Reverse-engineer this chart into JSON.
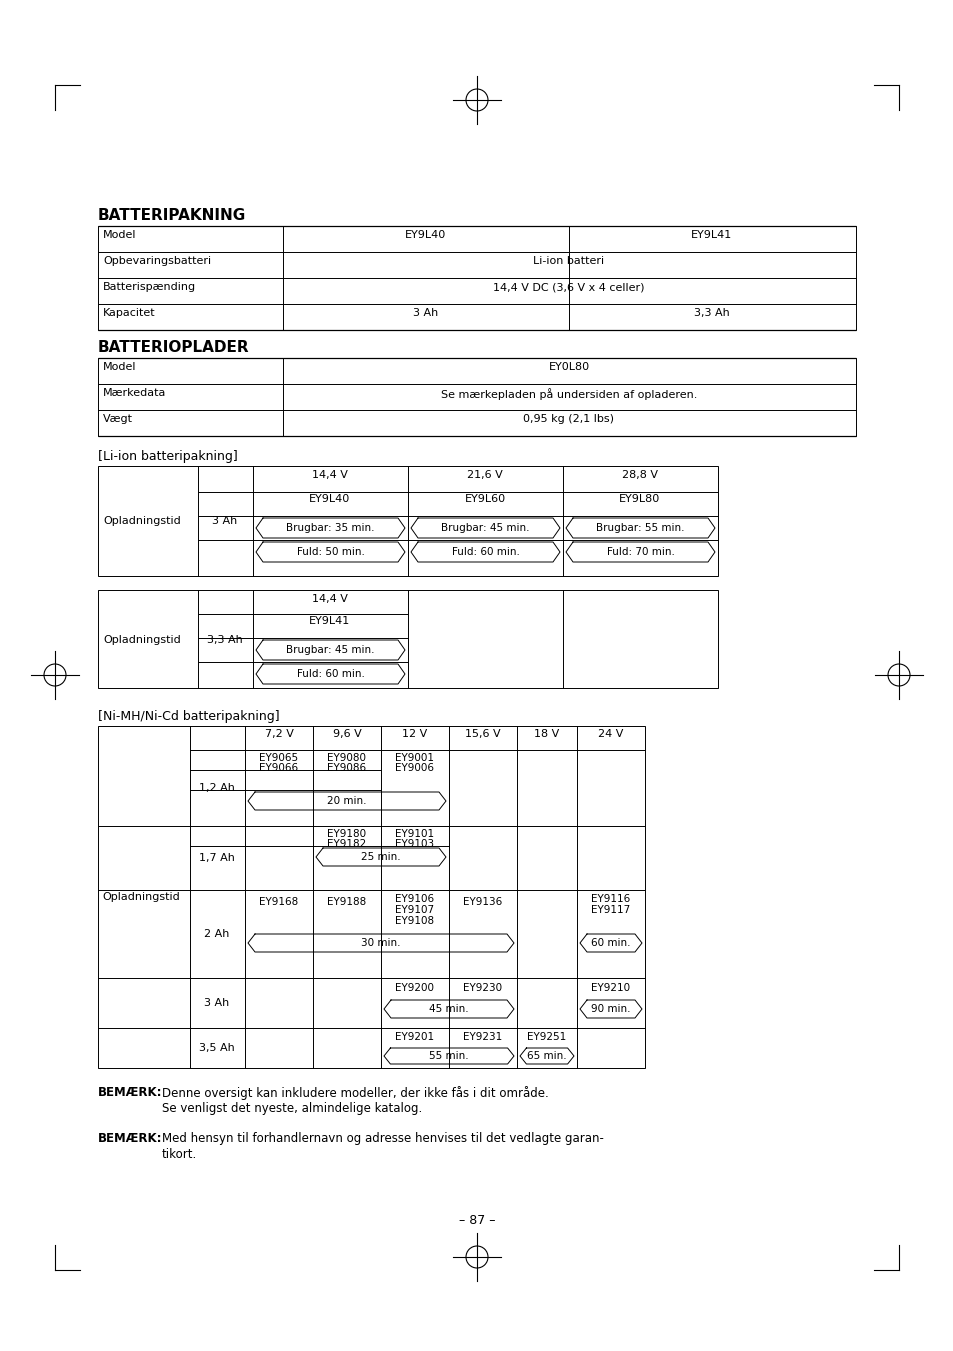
{
  "title1": "BATTERIPAKNING",
  "title2": "BATTERIOPLADER",
  "title3": "[Li-ion batteripakning]",
  "title4": "[Ni-MH/Ni-Cd batteripakning]",
  "page_num": "– 87 –",
  "bg_color": "#ffffff",
  "text_color": "#000000"
}
